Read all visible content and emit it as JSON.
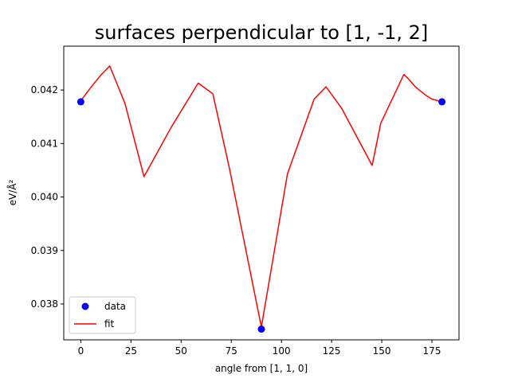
{
  "chart_data": {
    "type": "line",
    "title": "surfaces perpendicular to [1, -1, 2]",
    "xlabel": "angle from [1, 1, 0]",
    "ylabel": "eV/Å²",
    "xlim": [
      -8.5,
      188.5
    ],
    "ylim": [
      0.03733,
      0.04282
    ],
    "xticks": [
      0,
      25,
      50,
      75,
      100,
      125,
      150,
      175
    ],
    "yticks": [
      0.038,
      0.039,
      0.04,
      0.041,
      0.042
    ],
    "ytick_labels": [
      "0.038",
      "0.039",
      "0.040",
      "0.041",
      "0.042"
    ],
    "grid": false,
    "legend_position": "lower-left",
    "series": [
      {
        "name": "data",
        "kind": "scatter",
        "color": "#0000ff",
        "x": [
          0,
          90,
          180
        ],
        "y": [
          0.04178,
          0.03753,
          0.04178
        ]
      },
      {
        "name": "fit",
        "kind": "line",
        "color": "#ff0000",
        "x": [
          0,
          5,
          10,
          14.4,
          22,
          31.5,
          45,
          58.5,
          65.8,
          74,
          90,
          103,
          116.3,
          122.2,
          130,
          145.2,
          149.5,
          161,
          163,
          167,
          172,
          175,
          180
        ],
        "y": [
          0.0418,
          0.04205,
          0.04228,
          0.04245,
          0.04175,
          0.04038,
          0.0413,
          0.04213,
          0.04193,
          0.04055,
          0.03757,
          0.04043,
          0.04183,
          0.04206,
          0.04166,
          0.04059,
          0.04138,
          0.04229,
          0.04222,
          0.04205,
          0.0419,
          0.04183,
          0.04178
        ]
      }
    ]
  }
}
